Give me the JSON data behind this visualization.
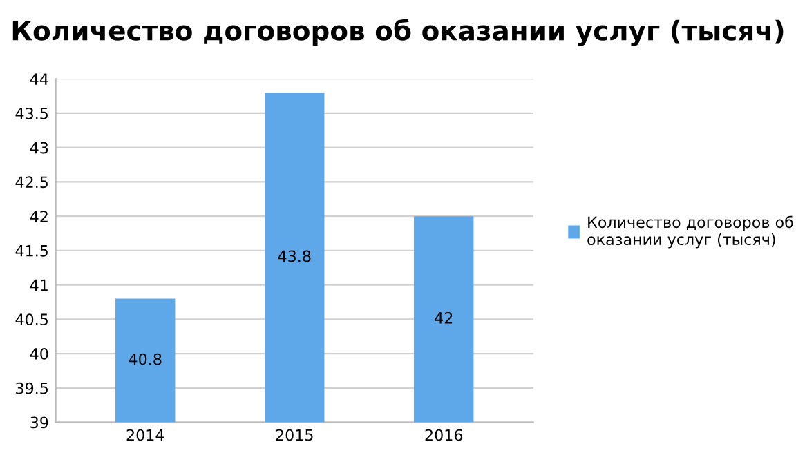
{
  "chart_data": {
    "type": "bar",
    "title": "Количество договоров об оказании услуг (тысяч)",
    "categories": [
      "2014",
      "2015",
      "2016"
    ],
    "series": [
      {
        "name": "Количество договоров об оказании услуг (тысяч)",
        "color": "#5ea7e8",
        "values": [
          40.8,
          43.8,
          42
        ]
      }
    ],
    "ylim": [
      39,
      44
    ],
    "yticks": [
      39,
      39.5,
      40,
      40.5,
      41,
      41.5,
      42,
      42.5,
      43,
      43.5,
      44
    ],
    "grid": "y",
    "legend": "right",
    "data_labels": true
  }
}
